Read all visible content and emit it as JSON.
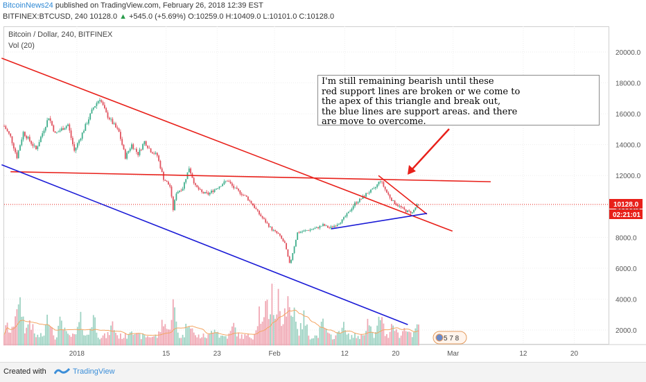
{
  "header": {
    "author": "BitcoinNews24",
    "publish_text": "published on TradingView.com, February 26, 2018 12:39 EST",
    "symbol": "BITFINEX:BTCUSD, 240",
    "last": "10128.0",
    "change": "+545.0 (+5.69%)",
    "ohlc": "O:10259.0 H:10409.0 L:10101.0 C:10128.0"
  },
  "chart_data": {
    "type": "candlestick",
    "title": "Bitcoin / Dollar, 240, BITFINEX",
    "indicator": "Vol (20)",
    "y_ticks": [
      "20000.0",
      "18000.0",
      "16000.0",
      "14000.0",
      "12000.0",
      "10000.0",
      "8000.0",
      "6000.0",
      "4000.0",
      "2000.0"
    ],
    "x_ticks": [
      "2018",
      "15",
      "23",
      "Feb",
      "12",
      "20",
      "Mar",
      "12",
      "20"
    ],
    "ylim": [
      1000,
      21200
    ],
    "current_price_label": "10128.0",
    "countdown_label": "02:21:01",
    "price_path": [
      {
        "d": 0,
        "p": 15200
      },
      {
        "d": 1,
        "p": 14500
      },
      {
        "d": 2,
        "p": 13200
      },
      {
        "d": 3,
        "p": 14800
      },
      {
        "d": 5,
        "p": 13700
      },
      {
        "d": 7,
        "p": 15800
      },
      {
        "d": 8,
        "p": 14700
      },
      {
        "d": 10,
        "p": 15300
      },
      {
        "d": 11,
        "p": 13600
      },
      {
        "d": 12,
        "p": 14500
      },
      {
        "d": 14,
        "p": 16400
      },
      {
        "d": 15,
        "p": 17000
      },
      {
        "d": 16,
        "p": 16000
      },
      {
        "d": 18,
        "p": 14800
      },
      {
        "d": 19,
        "p": 13200
      },
      {
        "d": 20,
        "p": 14000
      },
      {
        "d": 21,
        "p": 13400
      },
      {
        "d": 22,
        "p": 14200
      },
      {
        "d": 23,
        "p": 13600
      },
      {
        "d": 24,
        "p": 13300
      },
      {
        "d": 25,
        "p": 11800
      },
      {
        "d": 26,
        "p": 11300
      },
      {
        "d": 26.5,
        "p": 9800
      },
      {
        "d": 27,
        "p": 10900
      },
      {
        "d": 28,
        "p": 11200
      },
      {
        "d": 29,
        "p": 12500
      },
      {
        "d": 30,
        "p": 11300
      },
      {
        "d": 31,
        "p": 10900
      },
      {
        "d": 32,
        "p": 10800
      },
      {
        "d": 33,
        "p": 11100
      },
      {
        "d": 34,
        "p": 11400
      },
      {
        "d": 35,
        "p": 11700
      },
      {
        "d": 36,
        "p": 11200
      },
      {
        "d": 37,
        "p": 10900
      },
      {
        "d": 38,
        "p": 10600
      },
      {
        "d": 39,
        "p": 10100
      },
      {
        "d": 40,
        "p": 9500
      },
      {
        "d": 41,
        "p": 9000
      },
      {
        "d": 42,
        "p": 8500
      },
      {
        "d": 43,
        "p": 8200
      },
      {
        "d": 44,
        "p": 7600
      },
      {
        "d": 44.8,
        "p": 6200
      },
      {
        "d": 45.3,
        "p": 7100
      },
      {
        "d": 46,
        "p": 8300
      },
      {
        "d": 47,
        "p": 8400
      },
      {
        "d": 48,
        "p": 8500
      },
      {
        "d": 49,
        "p": 8600
      },
      {
        "d": 50,
        "p": 8800
      },
      {
        "d": 51,
        "p": 8600
      },
      {
        "d": 52,
        "p": 8800
      },
      {
        "d": 53,
        "p": 9100
      },
      {
        "d": 54,
        "p": 9600
      },
      {
        "d": 55,
        "p": 10200
      },
      {
        "d": 56,
        "p": 10500
      },
      {
        "d": 57,
        "p": 10900
      },
      {
        "d": 58,
        "p": 11100
      },
      {
        "d": 59,
        "p": 11700
      },
      {
        "d": 60,
        "p": 10900
      },
      {
        "d": 61,
        "p": 10300
      },
      {
        "d": 62,
        "p": 10000
      },
      {
        "d": 63,
        "p": 9700
      },
      {
        "d": 64,
        "p": 9600
      },
      {
        "d": 64.6,
        "p": 10000
      },
      {
        "d": 65,
        "p": 10128
      }
    ],
    "volume_peaks": [
      {
        "d": 0.5,
        "v": 1450
      },
      {
        "d": 2,
        "v": 3400
      },
      {
        "d": 2.6,
        "v": 3100
      },
      {
        "d": 4,
        "v": 2000
      },
      {
        "d": 7,
        "v": 2400
      },
      {
        "d": 9,
        "v": 2100
      },
      {
        "d": 12,
        "v": 1900
      },
      {
        "d": 14,
        "v": 2300
      },
      {
        "d": 17,
        "v": 1600
      },
      {
        "d": 20,
        "v": 1500
      },
      {
        "d": 25,
        "v": 2100
      },
      {
        "d": 26.5,
        "v": 3100
      },
      {
        "d": 29,
        "v": 2200
      },
      {
        "d": 33,
        "v": 1600
      },
      {
        "d": 36,
        "v": 1500
      },
      {
        "d": 40,
        "v": 2700
      },
      {
        "d": 41.2,
        "v": 3100
      },
      {
        "d": 42,
        "v": 4100
      },
      {
        "d": 43,
        "v": 3600
      },
      {
        "d": 44.5,
        "v": 4400
      },
      {
        "d": 45.5,
        "v": 2800
      },
      {
        "d": 47,
        "v": 2100
      },
      {
        "d": 50,
        "v": 1700
      },
      {
        "d": 53,
        "v": 1700
      },
      {
        "d": 57,
        "v": 1800
      },
      {
        "d": 59,
        "v": 2300
      },
      {
        "d": 61,
        "v": 2000
      },
      {
        "d": 63,
        "v": 1600
      },
      {
        "d": 65,
        "v": 1700
      }
    ],
    "trend_lines": [
      {
        "name": "red-resistance-line",
        "color": "#e8201a",
        "from": {
          "d": -0.4,
          "p": 19600
        },
        "to": {
          "d": 70.3,
          "p": 8400
        }
      },
      {
        "name": "red-horizontal-support-line",
        "color": "#e8201a",
        "from": {
          "d": 1,
          "p": 12250
        },
        "to": {
          "d": 76.3,
          "p": 11600
        }
      },
      {
        "name": "red-triangle-upper-line",
        "color": "#e8201a",
        "from": {
          "d": 58.7,
          "p": 12000
        },
        "to": {
          "d": 66.3,
          "p": 9500
        }
      },
      {
        "name": "blue-channel-support-line",
        "color": "#1a1ad6",
        "from": {
          "d": -0.4,
          "p": 12700
        },
        "to": {
          "d": 63.3,
          "p": 2350
        }
      },
      {
        "name": "blue-triangle-support-line",
        "color": "#1a1ad6",
        "from": {
          "d": 51.3,
          "p": 8550
        },
        "to": {
          "d": 66.3,
          "p": 9550
        }
      }
    ],
    "annotation_text": [
      "I'm still remaining bearish until these",
      "red support lines are broken or we come to",
      "the apex of this triangle and break out,",
      "the blue lines are support areas. and there",
      "are move to overcome."
    ],
    "event_badge": "5 7 8",
    "colors": {
      "up": "#3fae8c",
      "down": "#e0525e",
      "vol_up": "#9ed3c3",
      "vol_down": "#f0a8b4",
      "vol_ma": "#f4a460",
      "price_line": "#e8201a",
      "countdown_bg": "#e8201a"
    }
  },
  "footer": {
    "created_with": "Created with",
    "brand": "TradingView"
  }
}
